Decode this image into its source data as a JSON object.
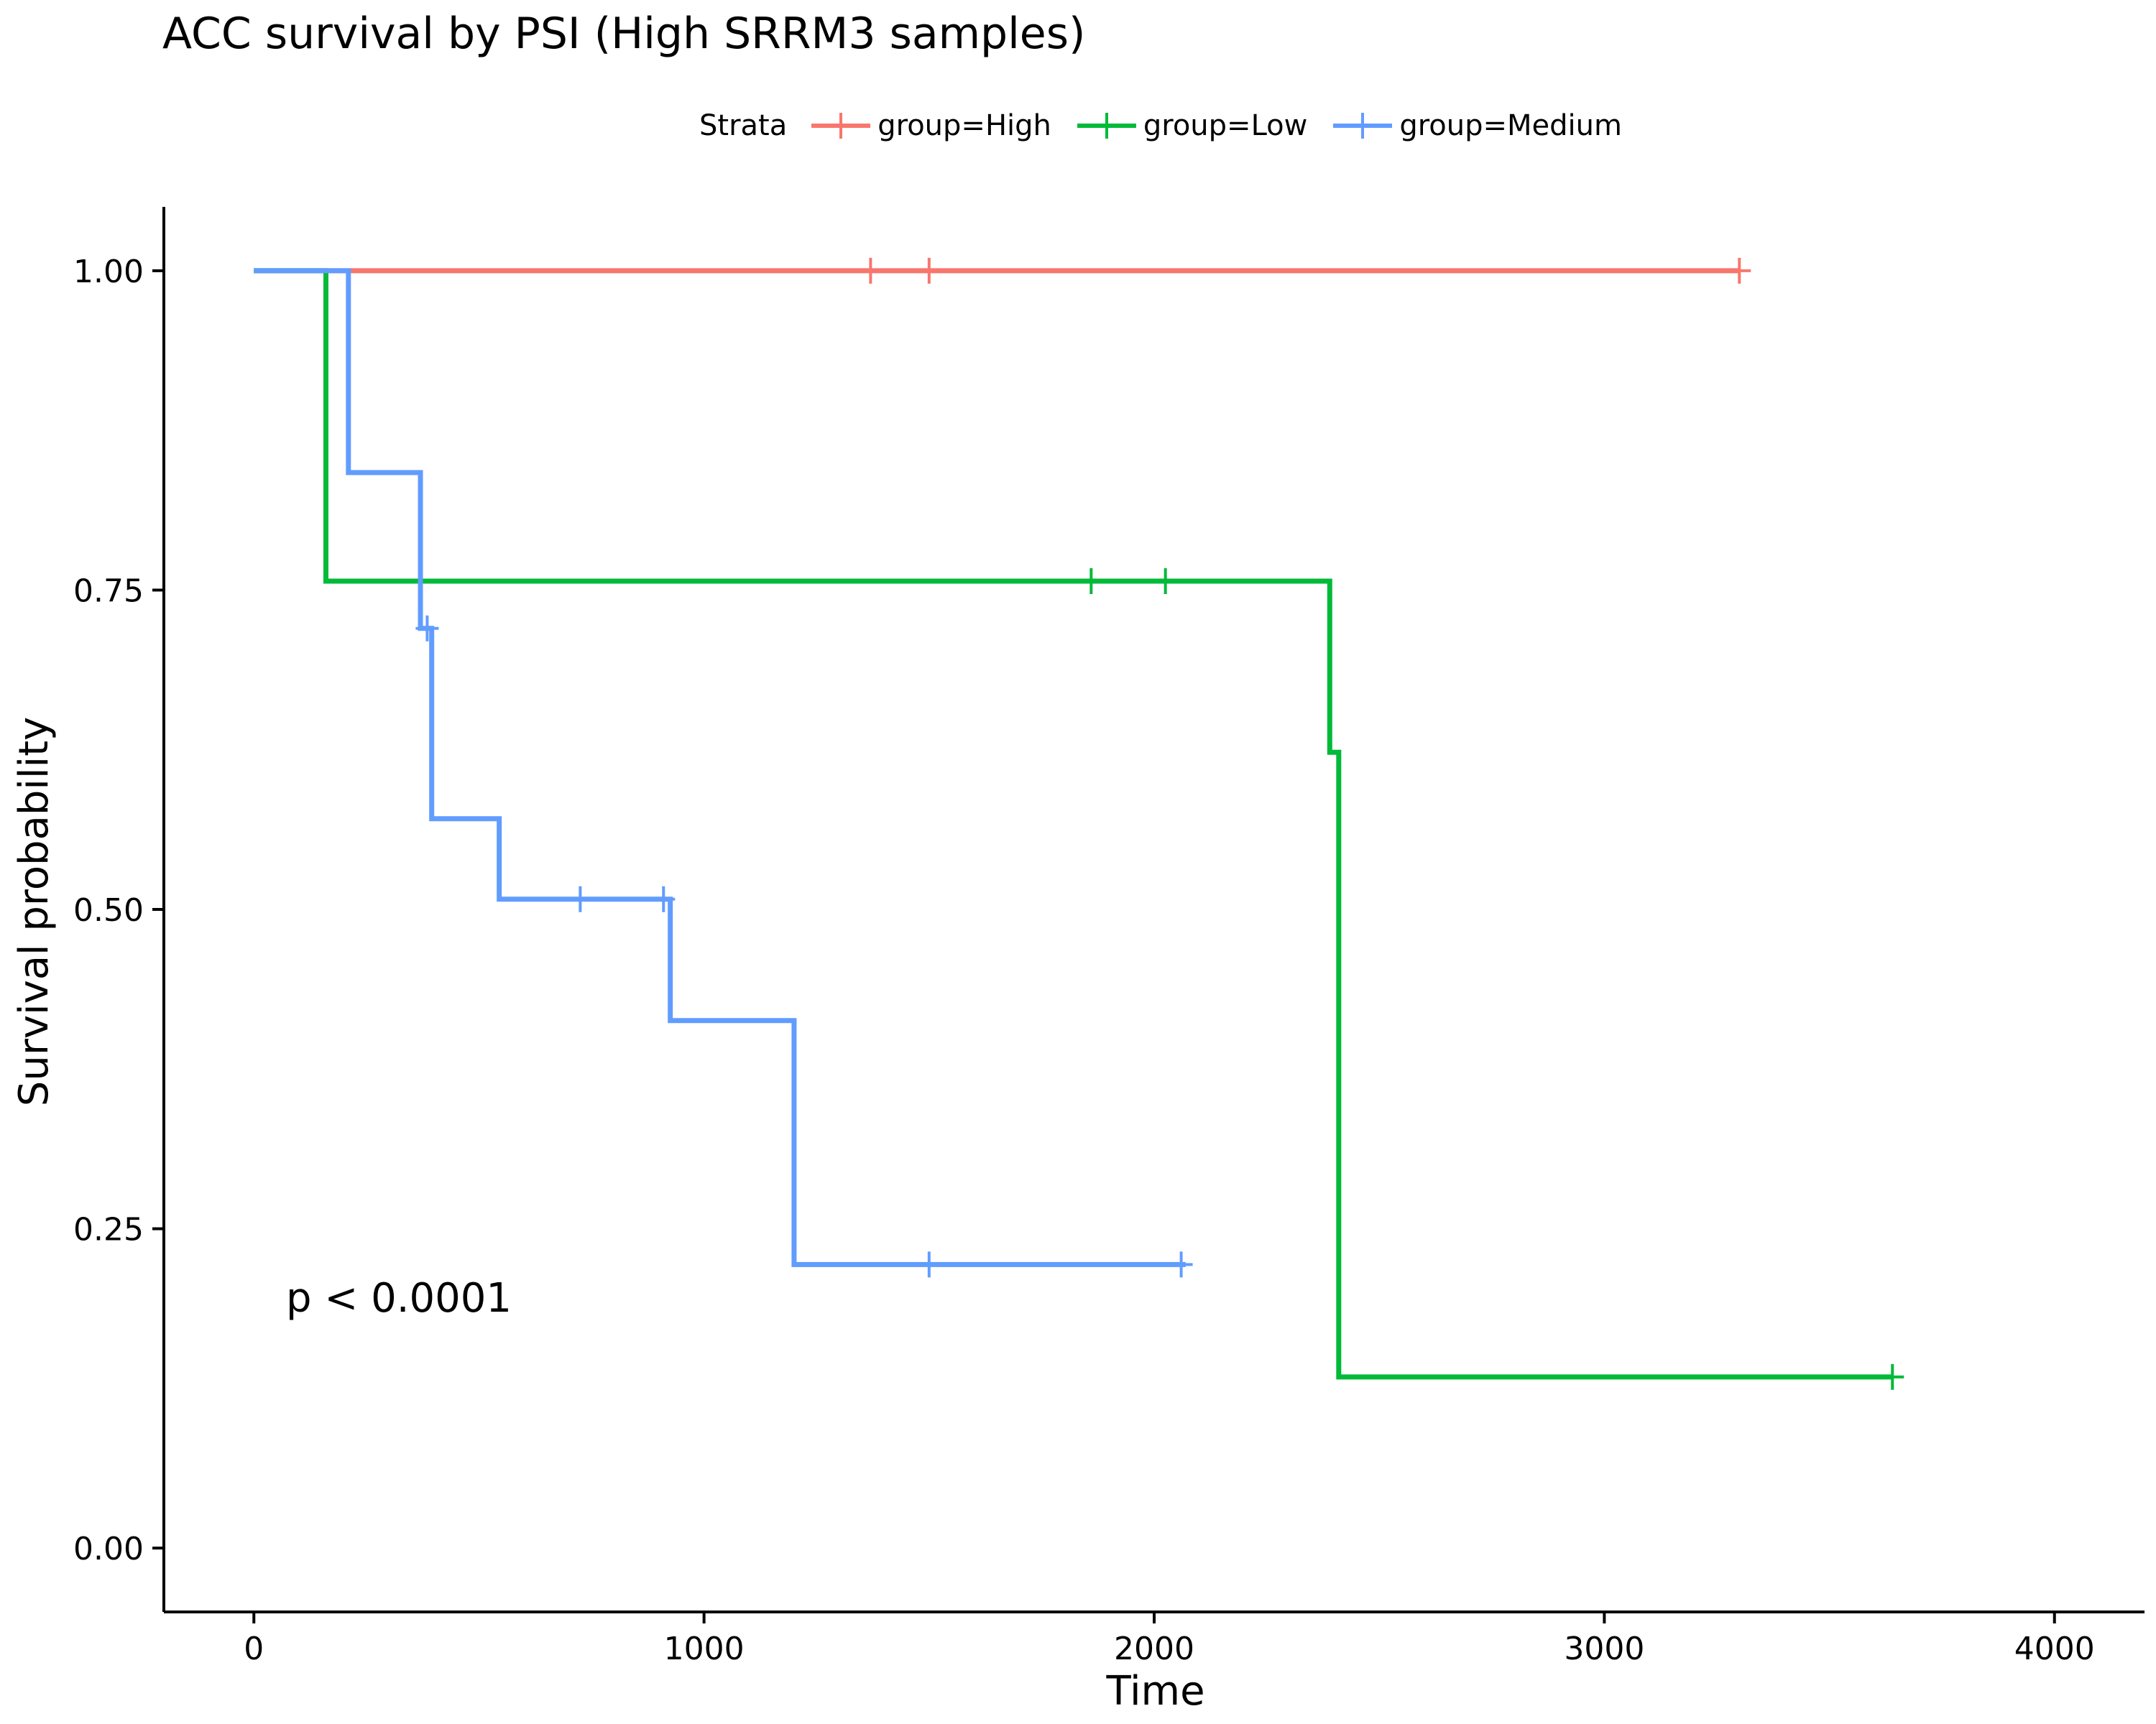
{
  "title": "ACC survival by PSI (High SRRM3 samples)",
  "legend": {
    "title": "Strata",
    "items": [
      {
        "label": "group=High",
        "color": "#F8766D"
      },
      {
        "label": "group=Low",
        "color": "#00BA38"
      },
      {
        "label": "group=Medium",
        "color": "#619CFF"
      }
    ]
  },
  "annotation": "p < 0.0001",
  "chart_data": {
    "type": "line",
    "subtype": "kaplan-meier step",
    "xlabel": "Time",
    "ylabel": "Survival probability",
    "xlim": [
      -200,
      4200
    ],
    "ylim": [
      -0.05,
      1.05
    ],
    "x_ticks": [
      0,
      1000,
      2000,
      3000,
      4000
    ],
    "x_tick_labels": [
      "0",
      "1000",
      "2000",
      "3000",
      "4000"
    ],
    "y_ticks": [
      0,
      0.25,
      0.5,
      0.75,
      1.0
    ],
    "y_tick_labels": [
      "0.00",
      "0.25",
      "0.50",
      "0.75",
      "1.00"
    ],
    "grid": false,
    "legend_position": "top",
    "series": [
      {
        "name": "group=High",
        "color": "#F8766D",
        "steps": [
          [
            0,
            1.0
          ],
          [
            3300,
            1.0
          ]
        ],
        "censored": [
          [
            1370,
            1.0
          ],
          [
            1500,
            1.0
          ],
          [
            3300,
            1.0
          ]
        ]
      },
      {
        "name": "group=Low",
        "color": "#00BA38",
        "steps": [
          [
            0,
            1.0
          ],
          [
            160,
            1.0
          ],
          [
            160,
            0.757
          ],
          [
            2390,
            0.757
          ],
          [
            2390,
            0.623
          ],
          [
            2410,
            0.623
          ],
          [
            2410,
            0.134
          ],
          [
            3640,
            0.134
          ]
        ],
        "censored": [
          [
            1860,
            0.757
          ],
          [
            2025,
            0.757
          ],
          [
            3640,
            0.134
          ]
        ]
      },
      {
        "name": "group=Medium",
        "color": "#619CFF",
        "steps": [
          [
            0,
            1.0
          ],
          [
            210,
            1.0
          ],
          [
            210,
            0.842
          ],
          [
            370,
            0.842
          ],
          [
            370,
            0.72
          ],
          [
            395,
            0.72
          ],
          [
            395,
            0.571
          ],
          [
            545,
            0.571
          ],
          [
            545,
            0.508
          ],
          [
            925,
            0.508
          ],
          [
            925,
            0.413
          ],
          [
            1200,
            0.413
          ],
          [
            1200,
            0.222
          ],
          [
            2070,
            0.222
          ]
        ],
        "censored": [
          [
            385,
            0.72
          ],
          [
            725,
            0.508
          ],
          [
            910,
            0.508
          ],
          [
            1500,
            0.222
          ],
          [
            2060,
            0.222
          ]
        ]
      }
    ]
  }
}
